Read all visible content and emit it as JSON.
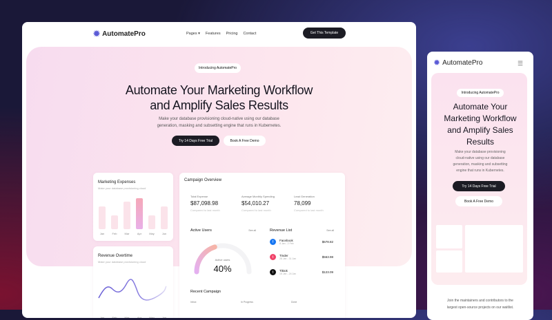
{
  "desktop": {
    "brand": "AutomatePro",
    "nav": [
      "Pages",
      "Features",
      "Pricing",
      "Contact"
    ],
    "cta": "Get This Template",
    "badge": "Introducing AutomatePro",
    "title_l1": "Automate Your Marketing Workflow",
    "title_l2": "and Amplify Sales Results",
    "sub_l1": "Make your database provisioning cloud-native using our database",
    "sub_l2": "generation, masking and subsetting engine that runs in Kubernetes.",
    "primary": "Try 14 Days Free Trial",
    "secondary": "Book A Free Demo"
  },
  "expenses": {
    "title": "Marketing Expenses",
    "subtitle": "Make your database provisioning cloud",
    "months": [
      "Jan",
      "Feb",
      "Mar",
      "Apr",
      "May",
      "Jun"
    ],
    "values": [
      33,
      20,
      40,
      45,
      20,
      33
    ],
    "highlight": "Apr"
  },
  "revenue": {
    "title": "Revenue Overtime",
    "subtitle": "Make your database provisioning cloud",
    "months": [
      "Jan",
      "Feb",
      "Mar",
      "Apr",
      "May",
      "Jun"
    ]
  },
  "campaign": {
    "title": "Campaign Overview",
    "stats": [
      {
        "label": "Total Expense",
        "value": "$87,098.98",
        "note": "Compared to last month"
      },
      {
        "label": "Average Monthly Spending",
        "value": "$54,010.27",
        "note": "Compared to last month"
      },
      {
        "label": "Lead Generation",
        "value": "78,099",
        "note": "Compared to last month"
      }
    ],
    "active_users": {
      "title": "Active Users",
      "see_all": "See all",
      "label": "Active users",
      "value": "40%",
      "percent": 40
    },
    "revenue_list": {
      "title": "Revenue List",
      "see_all": "See all",
      "items": [
        {
          "name": "Facebook",
          "dates": "8 Jan - 2 Feb",
          "amount": "$678.82",
          "color": "#1877f2",
          "icon": "facebook-icon"
        },
        {
          "name": "Tinder",
          "dates": "28 Jan - 31 Jan",
          "amount": "$563.98",
          "color": "#f0456a",
          "icon": "tinder-icon"
        },
        {
          "name": "Tiktok",
          "dates": "15 Jan - 24 Jan",
          "amount": "$123.09",
          "color": "#111111",
          "icon": "tiktok-icon"
        }
      ]
    },
    "recent": {
      "title": "Recent Campaign",
      "cols": [
        "Inbox",
        "In Progress",
        "Done"
      ]
    }
  },
  "mobile": {
    "brand": "AutomatePro",
    "badge": "Introducing AutomatePro",
    "title": [
      "Automate Your",
      "Marketing Workflow",
      "and Amplify Sales",
      "Results"
    ],
    "sub": [
      "Make your database provisioning",
      "cloud-native using our database",
      "generation, masking and subsetting",
      "engine that runs in Kubernetes."
    ],
    "primary": "Try 14 Days Free Trial",
    "secondary": "Book A Free Demo",
    "footer": [
      "Join the maintainers and contributors to the",
      "largest open-source projects on our waitlist."
    ]
  }
}
